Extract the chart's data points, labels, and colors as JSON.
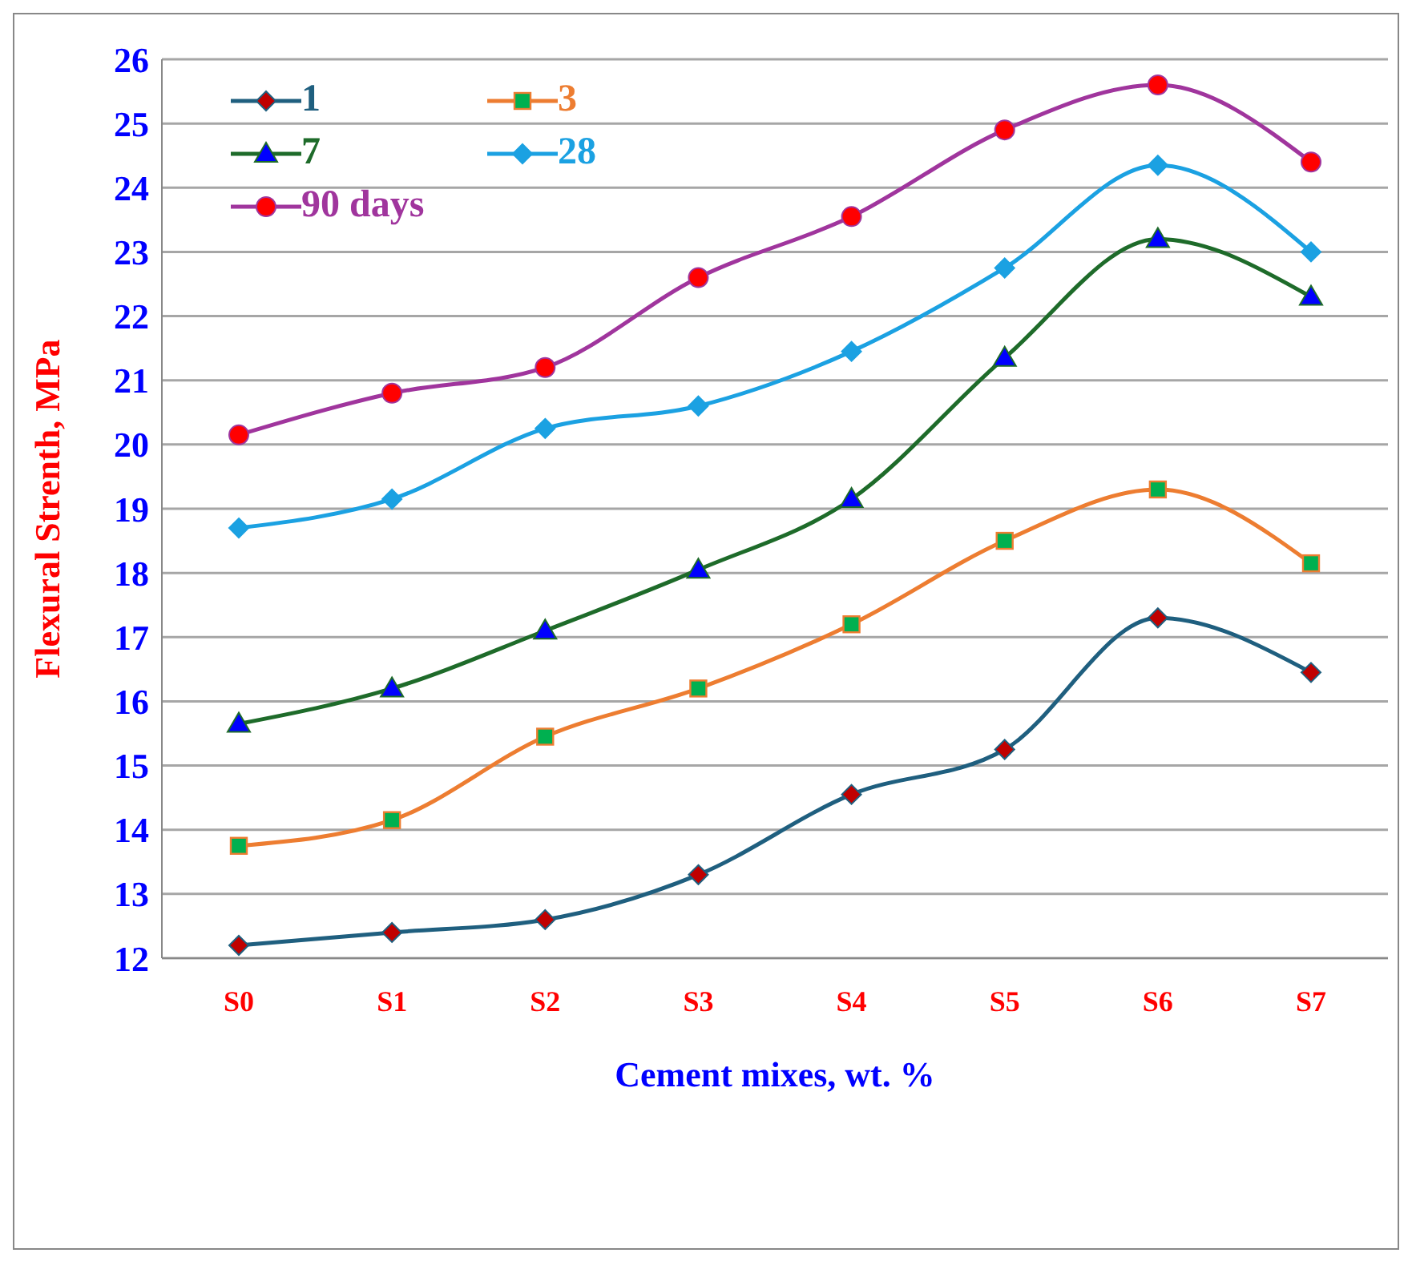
{
  "chart_data": {
    "type": "line",
    "xlabel": "Cement mixes, wt. %",
    "ylabel": "Flexural Strenth, MPa",
    "categories": [
      "S0",
      "S1",
      "S2",
      "S3",
      "S4",
      "S5",
      "S6",
      "S7"
    ],
    "series": [
      {
        "name": "1",
        "color": "#1f5f7f",
        "marker": "diamond",
        "values": [
          12.2,
          12.4,
          12.6,
          13.3,
          14.55,
          15.25,
          17.3,
          16.45
        ]
      },
      {
        "name": "3",
        "color": "#ed7d31",
        "marker": "square",
        "values": [
          13.75,
          14.15,
          15.45,
          16.2,
          17.2,
          18.5,
          19.3,
          18.15
        ]
      },
      {
        "name": "7",
        "color": "#1e6b2a",
        "marker": "triangle",
        "values": [
          15.65,
          16.2,
          17.1,
          18.05,
          19.15,
          21.35,
          23.2,
          22.3
        ]
      },
      {
        "name": "28",
        "color": "#1ba1e2",
        "marker": "diamond",
        "values": [
          18.7,
          19.15,
          20.25,
          20.6,
          21.45,
          22.75,
          24.35,
          23.0
        ]
      },
      {
        "name": "90 days",
        "color": "#a0359d",
        "marker": "circle",
        "values": [
          20.15,
          20.8,
          21.2,
          22.6,
          23.55,
          24.9,
          25.6,
          24.4
        ]
      }
    ],
    "ylim": [
      12,
      26
    ],
    "yticks": [
      12,
      13,
      14,
      15,
      16,
      17,
      18,
      19,
      20,
      21,
      22,
      23,
      24,
      25,
      26
    ],
    "grid": "y",
    "legend": "top left",
    "line_style": "solid"
  }
}
